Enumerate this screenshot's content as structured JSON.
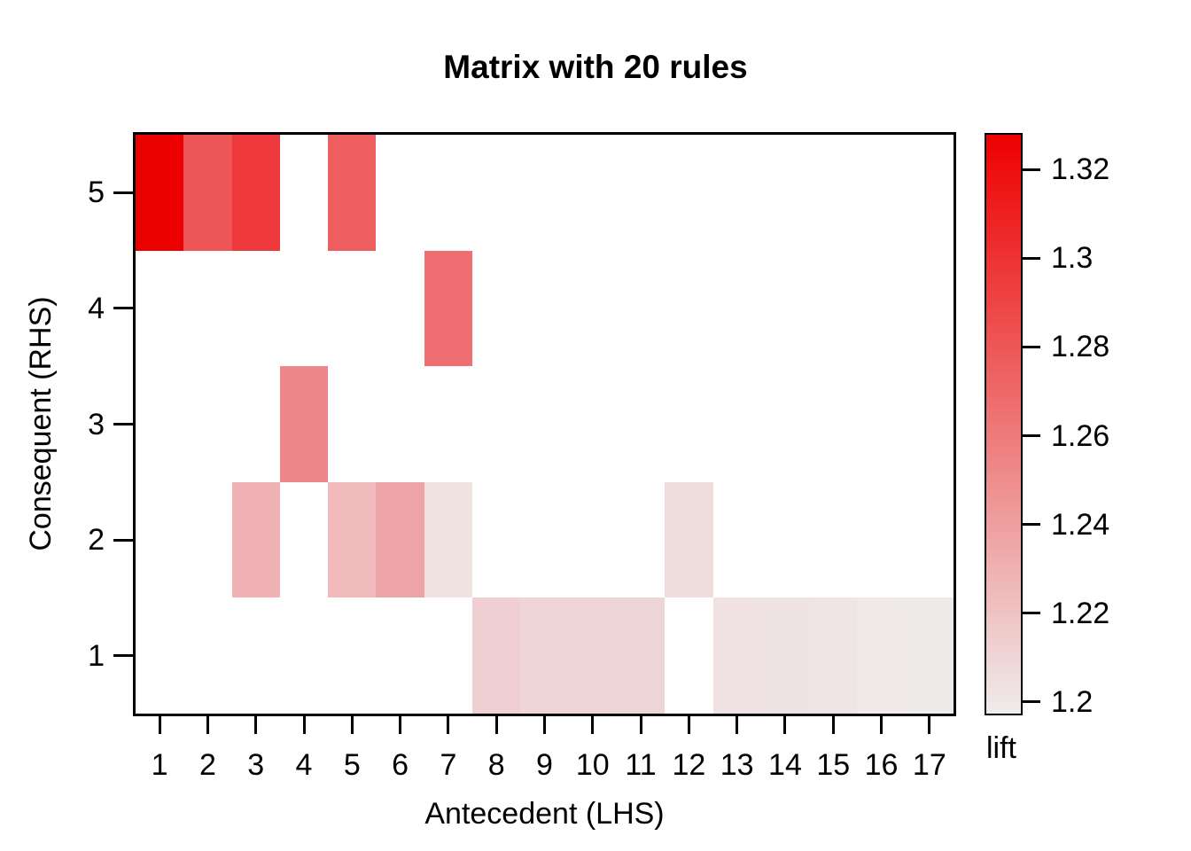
{
  "page": {
    "background": "#ffffff",
    "text_color": "#000000"
  },
  "chart_data": {
    "type": "heatmap",
    "title": "Matrix with 20 rules",
    "xlabel": "Antecedent (LHS)",
    "ylabel": "Consequent (RHS)",
    "x_categories": [
      "1",
      "2",
      "3",
      "4",
      "5",
      "6",
      "7",
      "8",
      "9",
      "10",
      "11",
      "12",
      "13",
      "14",
      "15",
      "16",
      "17"
    ],
    "y_categories_top_to_bottom": [
      "5",
      "4",
      "3",
      "2",
      "1"
    ],
    "grid": {
      "n_cols": 17,
      "n_rows": 5,
      "grid_lines": false,
      "empty_cell_color": "#ffffff"
    },
    "legend": {
      "label": "lift",
      "position": "right",
      "tick_labels": [
        "1.32",
        "1.3",
        "1.28",
        "1.26",
        "1.24",
        "1.22",
        "1.2"
      ],
      "tick_values": [
        1.32,
        1.3,
        1.28,
        1.26,
        1.24,
        1.22,
        1.2
      ],
      "value_top": 1.3278,
      "value_bottom": 1.1974,
      "color_top": "#ee0000",
      "color_bottom": "#efecec"
    },
    "cells": [
      {
        "lhs": 1,
        "rhs": 5,
        "lift": 1.327,
        "color": "#ec0101"
      },
      {
        "lhs": 2,
        "rhs": 5,
        "lift": 1.281,
        "color": "#ed5557"
      },
      {
        "lhs": 3,
        "rhs": 5,
        "lift": 1.297,
        "color": "#ee393c"
      },
      {
        "lhs": 5,
        "rhs": 5,
        "lift": 1.277,
        "color": "#ee5d5f"
      },
      {
        "lhs": 7,
        "rhs": 4,
        "lift": 1.267,
        "color": "#ef6e72"
      },
      {
        "lhs": 4,
        "rhs": 3,
        "lift": 1.254,
        "color": "#ee878a"
      },
      {
        "lhs": 3,
        "rhs": 2,
        "lift": 1.23,
        "color": "#f0b2b4"
      },
      {
        "lhs": 5,
        "rhs": 2,
        "lift": 1.226,
        "color": "#f0babc"
      },
      {
        "lhs": 6,
        "rhs": 2,
        "lift": 1.238,
        "color": "#eda4a6"
      },
      {
        "lhs": 7,
        "rhs": 2,
        "lift": 1.203,
        "color": "#f2e3e3"
      },
      {
        "lhs": 12,
        "rhs": 2,
        "lift": 1.207,
        "color": "#efdcdd"
      },
      {
        "lhs": 8,
        "rhs": 1,
        "lift": 1.214,
        "color": "#efcfd1"
      },
      {
        "lhs": 9,
        "rhs": 1,
        "lift": 1.211,
        "color": "#f0d5d6"
      },
      {
        "lhs": 10,
        "rhs": 1,
        "lift": 1.211,
        "color": "#f0d5d6"
      },
      {
        "lhs": 11,
        "rhs": 1,
        "lift": 1.21,
        "color": "#eed5d5"
      },
      {
        "lhs": 13,
        "rhs": 1,
        "lift": 1.204,
        "color": "#f0e2e2"
      },
      {
        "lhs": 14,
        "rhs": 1,
        "lift": 1.203,
        "color": "#f0e3e3"
      },
      {
        "lhs": 15,
        "rhs": 1,
        "lift": 1.202,
        "color": "#efe5e5"
      },
      {
        "lhs": 16,
        "rhs": 1,
        "lift": 1.2,
        "color": "#efe9e9"
      },
      {
        "lhs": 17,
        "rhs": 1,
        "lift": 1.199,
        "color": "#efeaea"
      }
    ]
  }
}
